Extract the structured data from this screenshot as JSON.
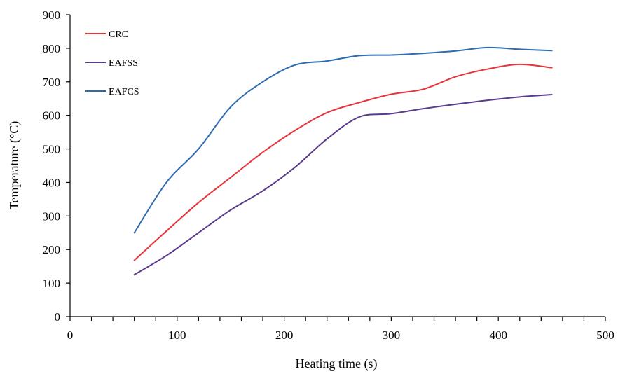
{
  "chart_data": {
    "type": "line",
    "title": "",
    "xlabel": "Heating time (s)",
    "ylabel": "Temperature  (°C)",
    "xlim": [
      0,
      500
    ],
    "ylim": [
      0,
      900
    ],
    "xticks": [
      0,
      100,
      200,
      300,
      400,
      500
    ],
    "yticks": [
      0,
      100,
      200,
      300,
      400,
      500,
      600,
      700,
      800,
      900
    ],
    "grid": false,
    "legend_position": "top-left",
    "series": [
      {
        "name": "CRC",
        "color": "#e8333a",
        "points": [
          [
            60,
            168
          ],
          [
            90,
            255
          ],
          [
            120,
            340
          ],
          [
            150,
            415
          ],
          [
            180,
            490
          ],
          [
            210,
            555
          ],
          [
            240,
            608
          ],
          [
            270,
            638
          ],
          [
            300,
            663
          ],
          [
            330,
            678
          ],
          [
            360,
            715
          ],
          [
            390,
            738
          ],
          [
            420,
            752
          ],
          [
            450,
            742
          ]
        ]
      },
      {
        "name": "EAFSS",
        "color": "#5b3b8c",
        "points": [
          [
            60,
            125
          ],
          [
            90,
            182
          ],
          [
            120,
            250
          ],
          [
            150,
            318
          ],
          [
            180,
            375
          ],
          [
            210,
            445
          ],
          [
            240,
            530
          ],
          [
            270,
            595
          ],
          [
            300,
            605
          ],
          [
            330,
            620
          ],
          [
            360,
            633
          ],
          [
            390,
            645
          ],
          [
            420,
            655
          ],
          [
            450,
            662
          ]
        ]
      },
      {
        "name": "EAFCS",
        "color": "#2e6bb0",
        "points": [
          [
            60,
            250
          ],
          [
            90,
            400
          ],
          [
            120,
            500
          ],
          [
            150,
            625
          ],
          [
            180,
            700
          ],
          [
            210,
            750
          ],
          [
            240,
            762
          ],
          [
            270,
            778
          ],
          [
            300,
            780
          ],
          [
            330,
            785
          ],
          [
            360,
            792
          ],
          [
            390,
            802
          ],
          [
            420,
            797
          ],
          [
            450,
            793
          ]
        ]
      }
    ]
  }
}
